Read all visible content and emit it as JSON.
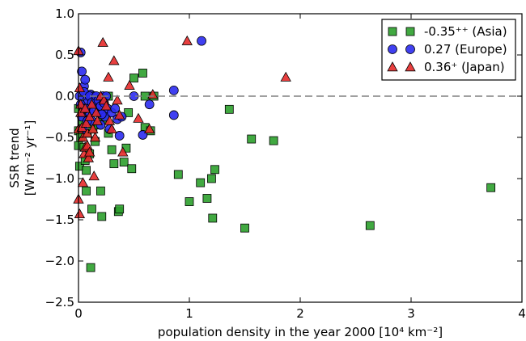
{
  "chart_data": {
    "type": "scatter",
    "xlabel": "population density in the year 2000 [10⁴  km⁻²]",
    "ylabel": [
      "SSR trend",
      "[W m⁻² yr⁻¹]"
    ],
    "xlim": [
      0,
      4
    ],
    "ylim": [
      -2.5,
      1.0
    ],
    "xticks": [
      0,
      1,
      2,
      3,
      4
    ],
    "xtick_labels": [
      "0",
      "1",
      "2",
      "3",
      "4"
    ],
    "yticks": [
      1.0,
      0.5,
      0.0,
      -0.5,
      -1.0,
      -1.5,
      -2.0,
      -2.5
    ],
    "ytick_labels": [
      "1.0",
      "0.5",
      "0.0",
      "−0.5",
      "−1.0",
      "−1.5",
      "−2.0",
      "−2.5"
    ],
    "reference_line": 0.0,
    "grid": false,
    "legend_position": "top-right",
    "series": [
      {
        "name": "-0.35⁺⁺ (Asia)",
        "marker": "square",
        "color": "#2ca02c",
        "points": [
          [
            0.0,
            -0.15
          ],
          [
            0.0,
            -0.42
          ],
          [
            0.0,
            -0.6
          ],
          [
            0.01,
            -0.85
          ],
          [
            0.02,
            -0.5
          ],
          [
            0.03,
            -0.3
          ],
          [
            0.04,
            -0.2
          ],
          [
            0.05,
            -0.62
          ],
          [
            0.06,
            -0.78
          ],
          [
            0.07,
            -0.9
          ],
          [
            0.07,
            -1.15
          ],
          [
            0.08,
            -0.45
          ],
          [
            0.1,
            -0.7
          ],
          [
            0.11,
            -2.08
          ],
          [
            0.12,
            -1.37
          ],
          [
            0.13,
            -0.4
          ],
          [
            0.15,
            -0.55
          ],
          [
            0.18,
            -0.35
          ],
          [
            0.2,
            -1.15
          ],
          [
            0.21,
            -1.46
          ],
          [
            0.22,
            -0.25
          ],
          [
            0.24,
            -0.28
          ],
          [
            0.27,
            -0.45
          ],
          [
            0.27,
            0.0
          ],
          [
            0.3,
            -0.65
          ],
          [
            0.32,
            -0.82
          ],
          [
            0.36,
            -1.4
          ],
          [
            0.37,
            -1.37
          ],
          [
            0.41,
            -0.8
          ],
          [
            0.43,
            -0.63
          ],
          [
            0.45,
            -0.2
          ],
          [
            0.48,
            -0.88
          ],
          [
            0.5,
            0.22
          ],
          [
            0.58,
            0.28
          ],
          [
            0.6,
            -0.38
          ],
          [
            0.6,
            0.0
          ],
          [
            0.65,
            -0.42
          ],
          [
            0.68,
            0.0
          ],
          [
            0.9,
            -0.95
          ],
          [
            1.0,
            -1.28
          ],
          [
            1.1,
            -1.05
          ],
          [
            1.16,
            -1.24
          ],
          [
            1.2,
            -1.0
          ],
          [
            1.21,
            -1.48
          ],
          [
            1.23,
            -0.89
          ],
          [
            1.36,
            -0.16
          ],
          [
            1.5,
            -1.6
          ],
          [
            1.56,
            -0.52
          ],
          [
            1.76,
            -0.54
          ],
          [
            2.63,
            -1.57
          ],
          [
            3.72,
            -1.11
          ]
        ]
      },
      {
        "name": "0.27 (Europe)",
        "marker": "circle",
        "color": "#2b2bf0",
        "points": [
          [
            0.02,
            0.53
          ],
          [
            0.03,
            0.3
          ],
          [
            0.05,
            0.12
          ],
          [
            0.06,
            0.2
          ],
          [
            0.07,
            0.0
          ],
          [
            0.08,
            -0.08
          ],
          [
            0.1,
            -0.2
          ],
          [
            0.11,
            0.02
          ],
          [
            0.12,
            -0.3
          ],
          [
            0.14,
            0.0
          ],
          [
            0.15,
            -0.05
          ],
          [
            0.17,
            -0.1
          ],
          [
            0.19,
            -0.2
          ],
          [
            0.2,
            -0.35
          ],
          [
            0.22,
            0.0
          ],
          [
            0.24,
            -0.25
          ],
          [
            0.25,
            0.0
          ],
          [
            0.26,
            -0.15
          ],
          [
            0.28,
            -0.4
          ],
          [
            0.3,
            -0.2
          ],
          [
            0.33,
            -0.15
          ],
          [
            0.35,
            -0.28
          ],
          [
            0.37,
            -0.48
          ],
          [
            0.39,
            -0.25
          ],
          [
            0.5,
            0.0
          ],
          [
            0.58,
            -0.47
          ],
          [
            0.64,
            -0.1
          ],
          [
            0.86,
            0.07
          ],
          [
            0.86,
            -0.23
          ],
          [
            1.11,
            0.67
          ],
          [
            0.01,
            0.0
          ],
          [
            0.02,
            -0.1
          ],
          [
            0.03,
            -0.25
          ],
          [
            0.04,
            -0.4
          ],
          [
            0.05,
            0.05
          ],
          [
            0.06,
            -0.15
          ],
          [
            0.08,
            -0.3
          ],
          [
            0.1,
            0.0
          ],
          [
            0.12,
            -0.08
          ],
          [
            0.14,
            -0.18
          ],
          [
            0.16,
            0.0
          ],
          [
            0.18,
            -0.05
          ],
          [
            0.2,
            -0.12
          ],
          [
            0.21,
            -0.22
          ],
          [
            0.23,
            -0.08
          ]
        ]
      },
      {
        "name": "0.36⁺ (Japan)",
        "marker": "triangle",
        "color": "#e62a2a",
        "points": [
          [
            0.0,
            0.55
          ],
          [
            0.0,
            -0.4
          ],
          [
            0.0,
            -1.25
          ],
          [
            0.01,
            -1.43
          ],
          [
            0.01,
            0.1
          ],
          [
            0.02,
            -0.1
          ],
          [
            0.03,
            -0.38
          ],
          [
            0.04,
            -1.05
          ],
          [
            0.05,
            -0.7
          ],
          [
            0.06,
            -0.62
          ],
          [
            0.07,
            -0.33
          ],
          [
            0.08,
            -0.6
          ],
          [
            0.09,
            -0.75
          ],
          [
            0.1,
            -0.68
          ],
          [
            0.12,
            -0.1
          ],
          [
            0.14,
            -0.97
          ],
          [
            0.15,
            -0.5
          ],
          [
            0.17,
            -0.3
          ],
          [
            0.2,
            0.0
          ],
          [
            0.22,
            0.65
          ],
          [
            0.23,
            -0.05
          ],
          [
            0.25,
            -0.12
          ],
          [
            0.27,
            0.23
          ],
          [
            0.28,
            -0.3
          ],
          [
            0.3,
            -0.4
          ],
          [
            0.32,
            0.43
          ],
          [
            0.35,
            -0.05
          ],
          [
            0.37,
            -0.23
          ],
          [
            0.4,
            -0.68
          ],
          [
            0.46,
            0.13
          ],
          [
            0.54,
            -0.27
          ],
          [
            0.64,
            -0.4
          ],
          [
            0.67,
            0.02
          ],
          [
            0.98,
            0.67
          ],
          [
            1.87,
            0.23
          ],
          [
            0.02,
            -0.2
          ],
          [
            0.04,
            -0.5
          ],
          [
            0.06,
            -0.15
          ],
          [
            0.08,
            -0.45
          ],
          [
            0.1,
            -0.25
          ],
          [
            0.13,
            -0.4
          ],
          [
            0.16,
            -0.2
          ]
        ]
      }
    ]
  }
}
